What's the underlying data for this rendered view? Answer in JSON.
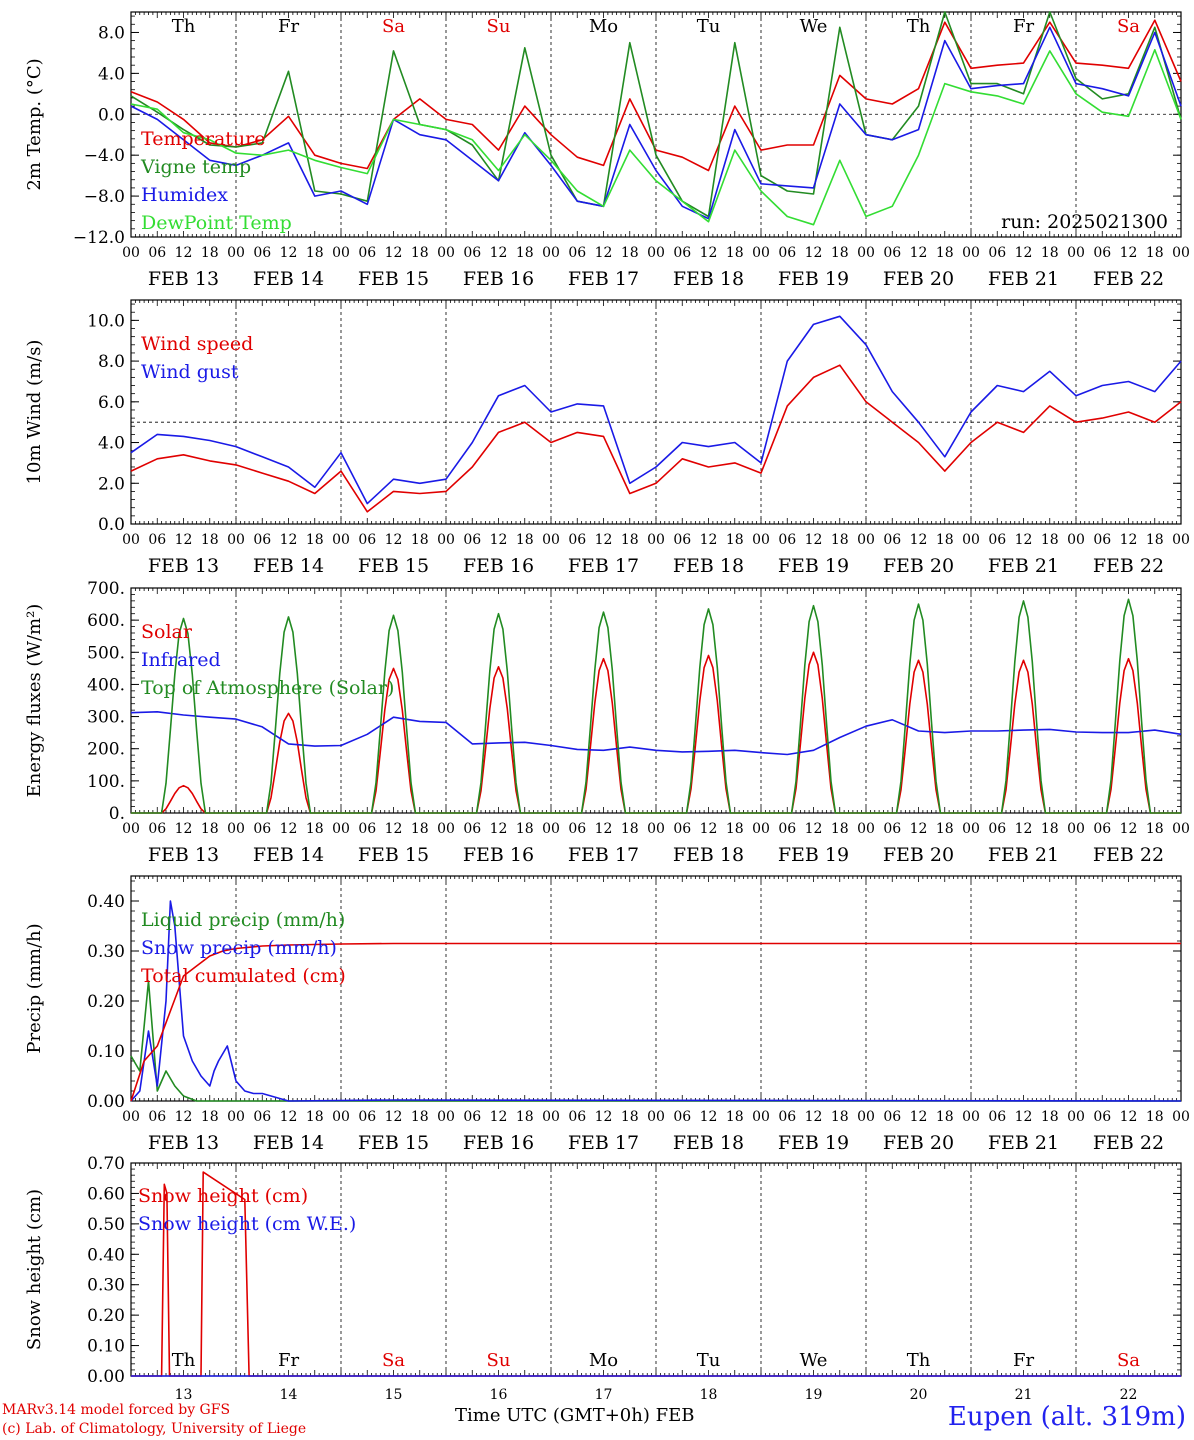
{
  "meta": {
    "run_label": "run: 2025021300",
    "station": "Eupen (alt. 319m)",
    "credit_lines": [
      "MARv3.14 model forced by GFS",
      "(c) Lab. of Climatology, University of Liege"
    ],
    "x_title": "Time UTC (GMT+0h)",
    "x_title_month": "FEB"
  },
  "axis": {
    "days": [
      "FEB 13",
      "FEB 14",
      "FEB 15",
      "FEB 16",
      "FEB 17",
      "FEB 18",
      "FEB 19",
      "FEB 20",
      "FEB 21",
      "FEB 22"
    ],
    "day_numbers": [
      "13",
      "14",
      "15",
      "16",
      "17",
      "18",
      "19",
      "20",
      "21",
      "22"
    ],
    "weekdays": [
      "Th",
      "Fr",
      "Sa",
      "Su",
      "Mo",
      "Tu",
      "We",
      "Th",
      "Fr",
      "Sa"
    ],
    "weekday_colors": [
      "#000000",
      "#000000",
      "#e00000",
      "#e00000",
      "#000000",
      "#000000",
      "#000000",
      "#000000",
      "#000000",
      "#e00000"
    ],
    "hour_labels": [
      "00",
      "06",
      "12",
      "18"
    ],
    "last_hour_label": "00"
  },
  "colors": {
    "red": "#e00000",
    "green": "#228b22",
    "blue": "#1a1ae6",
    "lightgreen": "#33dd33"
  },
  "chart_data": [
    {
      "id": "temp",
      "type": "line",
      "ylabel": "2m Temp. (°C)",
      "ylim": [
        -12,
        10
      ],
      "yticks": [
        -12,
        -8,
        -4,
        0,
        4,
        8
      ],
      "ytick_labels": [
        "−12.0",
        "−8.0",
        "−4.0",
        "0.0",
        "4.0",
        "8.0"
      ],
      "dashed_y": 0,
      "show_weekdays": true,
      "x_hours": [
        0,
        6,
        12,
        18,
        24,
        30,
        36,
        42,
        48,
        54,
        60,
        66,
        72,
        78,
        84,
        90,
        96,
        102,
        108,
        114,
        120,
        126,
        132,
        138,
        144,
        150,
        156,
        162,
        168,
        174,
        180,
        186,
        192,
        198,
        204,
        210,
        216,
        222,
        228,
        234,
        240
      ],
      "series": [
        {
          "name": "Temperature",
          "color": "red",
          "values": [
            2.2,
            1.2,
            -0.5,
            -2.8,
            -3.2,
            -2.5,
            -0.2,
            -4.0,
            -4.8,
            -5.3,
            -0.5,
            1.5,
            -0.5,
            -1.0,
            -3.5,
            0.8,
            -2.0,
            -4.2,
            -5.0,
            1.5,
            -3.5,
            -4.2,
            -5.5,
            0.8,
            -3.5,
            -3.0,
            -3.0,
            3.8,
            1.5,
            1.0,
            2.5,
            9.0,
            4.5,
            4.8,
            5.0,
            9.0,
            5.0,
            4.8,
            4.5,
            9.2,
            3.2
          ]
        },
        {
          "name": "Vigne temp",
          "color": "green",
          "values": [
            1.8,
            0.2,
            -1.5,
            -3.0,
            -3.2,
            -2.8,
            4.2,
            -7.5,
            -7.8,
            -8.5,
            6.2,
            -1.0,
            -1.5,
            -3.0,
            -6.5,
            6.5,
            -4.0,
            -8.5,
            -9.0,
            7.0,
            -4.0,
            -8.5,
            -10.0,
            7.0,
            -6.0,
            -7.5,
            -7.8,
            8.5,
            -2.0,
            -2.5,
            0.8,
            12.0,
            3.0,
            3.0,
            2.0,
            11.5,
            3.5,
            1.5,
            2.0,
            8.5,
            -0.5
          ]
        },
        {
          "name": "Humidex",
          "color": "blue",
          "values": [
            0.8,
            -0.5,
            -2.5,
            -4.5,
            -5.0,
            -4.0,
            -2.8,
            -8.0,
            -7.5,
            -8.8,
            -0.5,
            -2.0,
            -2.5,
            -4.5,
            -6.5,
            -1.8,
            -5.0,
            -8.5,
            -9.0,
            -1.0,
            -5.5,
            -9.0,
            -10.2,
            -1.5,
            -6.8,
            -7.0,
            -7.2,
            1.0,
            -2.0,
            -2.5,
            -1.5,
            7.2,
            2.5,
            2.8,
            3.0,
            8.5,
            3.0,
            2.5,
            1.8,
            8.0,
            0.8
          ]
        },
        {
          "name": "DewPoint Temp",
          "color": "lightgreen",
          "values": [
            1.0,
            0.5,
            -1.8,
            -2.5,
            -3.8,
            -4.0,
            -3.5,
            -4.5,
            -5.2,
            -5.8,
            -0.5,
            -1.0,
            -1.5,
            -2.5,
            -5.5,
            -2.0,
            -4.5,
            -7.5,
            -9.0,
            -3.5,
            -6.5,
            -8.5,
            -10.5,
            -3.5,
            -7.5,
            -10.0,
            -10.8,
            -4.5,
            -10.0,
            -9.0,
            -4.0,
            3.0,
            2.2,
            1.8,
            1.0,
            6.2,
            2.0,
            0.2,
            -0.2,
            6.3,
            -0.5
          ]
        }
      ]
    },
    {
      "id": "wind",
      "type": "line",
      "ylabel": "10m Wind (m/s)",
      "ylim": [
        0,
        11
      ],
      "yticks": [
        0,
        2,
        4,
        6,
        8,
        10
      ],
      "ytick_labels": [
        "0.0",
        "2.0",
        "4.0",
        "6.0",
        "8.0",
        "10.0"
      ],
      "dashed_y": 5,
      "show_weekdays": false,
      "x_hours": [
        0,
        6,
        12,
        18,
        24,
        30,
        36,
        42,
        48,
        54,
        60,
        66,
        72,
        78,
        84,
        90,
        96,
        102,
        108,
        114,
        120,
        126,
        132,
        138,
        144,
        150,
        156,
        162,
        168,
        174,
        180,
        186,
        192,
        198,
        204,
        210,
        216,
        222,
        228,
        234,
        240
      ],
      "series": [
        {
          "name": "Wind speed",
          "color": "red",
          "values": [
            2.6,
            3.2,
            3.4,
            3.1,
            2.9,
            2.5,
            2.1,
            1.5,
            2.6,
            0.6,
            1.6,
            1.5,
            1.6,
            2.8,
            4.5,
            5.0,
            4.0,
            4.5,
            4.3,
            1.5,
            2.0,
            3.2,
            2.8,
            3.0,
            2.5,
            5.8,
            7.2,
            7.8,
            6.0,
            5.0,
            4.0,
            2.6,
            4.0,
            5.0,
            4.5,
            5.8,
            5.0,
            5.2,
            5.5,
            5.0,
            6.0
          ]
        },
        {
          "name": "Wind gust",
          "color": "blue",
          "values": [
            3.5,
            4.4,
            4.3,
            4.1,
            3.8,
            3.3,
            2.8,
            1.8,
            3.5,
            1.0,
            2.2,
            2.0,
            2.2,
            4.0,
            6.3,
            6.8,
            5.5,
            5.9,
            5.8,
            2.0,
            2.8,
            4.0,
            3.8,
            4.0,
            3.0,
            8.0,
            9.8,
            10.2,
            8.8,
            6.5,
            5.0,
            3.3,
            5.5,
            6.8,
            6.5,
            7.5,
            6.3,
            6.8,
            7.0,
            6.5,
            8.0
          ]
        }
      ]
    },
    {
      "id": "flux",
      "type": "line",
      "ylabel": "Energy fluxes (W/m²)",
      "ylim": [
        0,
        700
      ],
      "yticks": [
        0,
        100,
        200,
        300,
        400,
        500,
        600,
        700
      ],
      "ytick_labels": [
        "0.",
        "100.",
        "200.",
        "300.",
        "400.",
        "500.",
        "600.",
        "700."
      ],
      "dashed_y": null,
      "show_weekdays": false,
      "x_hours": [
        0,
        6,
        12,
        18,
        24,
        30,
        36,
        42,
        48,
        54,
        60,
        66,
        72,
        78,
        84,
        90,
        96,
        102,
        108,
        114,
        120,
        126,
        132,
        138,
        144,
        150,
        156,
        162,
        168,
        174,
        180,
        186,
        192,
        198,
        204,
        210,
        216,
        222,
        228,
        234,
        240
      ],
      "series": [
        {
          "name": "Solar",
          "color": "red",
          "diurnal_peaks": [
            85,
            310,
            450,
            455,
            480,
            490,
            500,
            475,
            475,
            480
          ]
        },
        {
          "name": "Infrared",
          "color": "blue",
          "values": [
            312,
            315,
            305,
            298,
            292,
            268,
            215,
            208,
            210,
            245,
            298,
            285,
            282,
            215,
            218,
            220,
            210,
            198,
            195,
            205,
            195,
            190,
            192,
            195,
            188,
            182,
            195,
            235,
            270,
            290,
            255,
            250,
            255,
            255,
            258,
            260,
            252,
            250,
            250,
            258,
            245
          ]
        },
        {
          "name": "Top of Atmosphere (Solar)",
          "color": "green",
          "diurnal_peaks": [
            605,
            610,
            615,
            620,
            625,
            635,
            645,
            650,
            660,
            665
          ]
        }
      ]
    },
    {
      "id": "precip",
      "type": "line",
      "ylabel": "Precip (mm/h)",
      "ylim": [
        0,
        0.45
      ],
      "yticks": [
        0,
        0.1,
        0.2,
        0.3,
        0.4
      ],
      "ytick_labels": [
        "0.00",
        "0.10",
        "0.20",
        "0.30",
        "0.40"
      ],
      "dashed_y": null,
      "show_weekdays": false,
      "series": [
        {
          "name": "Liquid precip (mm/h)",
          "color": "green",
          "x": [
            0,
            2,
            4,
            6,
            8,
            10,
            12,
            15,
            18,
            240
          ],
          "values": [
            0.09,
            0.06,
            0.24,
            0.02,
            0.06,
            0.03,
            0.01,
            0.0,
            0.0,
            0.0
          ]
        },
        {
          "name": "Snow precip (mm/h)",
          "color": "blue",
          "x": [
            0,
            2,
            4,
            6,
            8,
            9,
            10,
            12,
            14,
            16,
            18,
            19,
            20,
            22,
            24,
            26,
            28,
            30,
            36,
            60,
            240
          ],
          "values": [
            0.0,
            0.02,
            0.14,
            0.03,
            0.2,
            0.4,
            0.35,
            0.13,
            0.08,
            0.05,
            0.03,
            0.06,
            0.08,
            0.11,
            0.04,
            0.02,
            0.015,
            0.015,
            0.0,
            0.002,
            0.0
          ]
        },
        {
          "name": "Total cumulated (cm)",
          "color": "red",
          "x": [
            0,
            3,
            6,
            9,
            12,
            15,
            18,
            21,
            24,
            30,
            36,
            48,
            60,
            240
          ],
          "values": [
            0.0,
            0.08,
            0.11,
            0.18,
            0.25,
            0.27,
            0.29,
            0.3,
            0.305,
            0.31,
            0.312,
            0.314,
            0.315,
            0.315
          ]
        }
      ]
    },
    {
      "id": "snow",
      "type": "line",
      "ylabel": "Snow height (cm)",
      "ylim": [
        0,
        0.7
      ],
      "yticks": [
        0,
        0.1,
        0.2,
        0.3,
        0.4,
        0.5,
        0.6,
        0.7
      ],
      "ytick_labels": [
        "0.00",
        "0.10",
        "0.20",
        "0.30",
        "0.40",
        "0.50",
        "0.60",
        "0.70"
      ],
      "dashed_y": null,
      "show_weekdays": "bottom",
      "series": [
        {
          "name": "Snow height (cm)",
          "color": "red",
          "x": [
            0,
            7,
            7.6,
            8.2,
            8.8,
            16,
            16.5,
            26,
            27,
            27.5,
            240
          ],
          "values": [
            0,
            0,
            0.63,
            0.6,
            0,
            0,
            0.67,
            0.58,
            0,
            0,
            0
          ]
        },
        {
          "name": "Snow height (cm W.E.)",
          "color": "blue",
          "x": [
            0,
            240
          ],
          "values": [
            0,
            0
          ]
        }
      ]
    }
  ]
}
